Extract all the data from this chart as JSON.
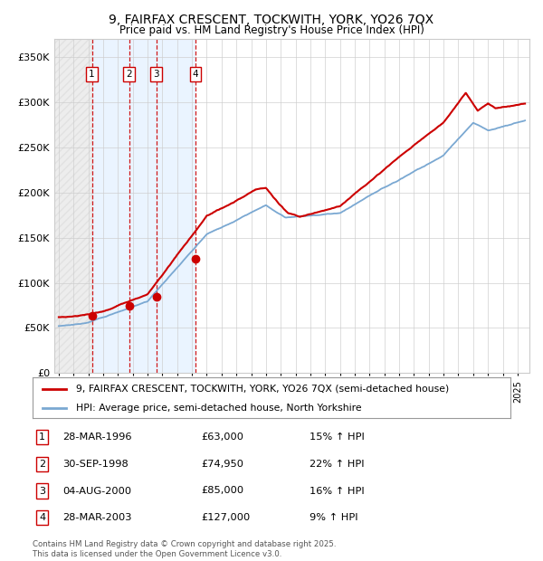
{
  "title1": "9, FAIRFAX CRESCENT, TOCKWITH, YORK, YO26 7QX",
  "title2": "Price paid vs. HM Land Registry's House Price Index (HPI)",
  "title_fontsize": 10,
  "subtitle_fontsize": 8.5,
  "ylabel_ticks": [
    "£0",
    "£50K",
    "£100K",
    "£150K",
    "£200K",
    "£250K",
    "£300K",
    "£350K"
  ],
  "ytick_values": [
    0,
    50000,
    100000,
    150000,
    200000,
    250000,
    300000,
    350000
  ],
  "ylim": [
    0,
    370000
  ],
  "xlim_start": 1993.7,
  "xlim_end": 2025.8,
  "purchases": [
    {
      "num": 1,
      "date_dec": 1996.24,
      "price": 63000,
      "date_str": "28-MAR-1996",
      "pct": "15%"
    },
    {
      "num": 2,
      "date_dec": 1998.75,
      "price": 74950,
      "date_str": "30-SEP-1998",
      "pct": "22%"
    },
    {
      "num": 3,
      "date_dec": 2000.59,
      "price": 85000,
      "date_str": "04-AUG-2000",
      "pct": "16%"
    },
    {
      "num": 4,
      "date_dec": 2003.24,
      "price": 127000,
      "date_str": "28-MAR-2003",
      "pct": "9%"
    }
  ],
  "legend_line1": "9, FAIRFAX CRESCENT, TOCKWITH, YORK, YO26 7QX (semi-detached house)",
  "legend_line2": "HPI: Average price, semi-detached house, North Yorkshire",
  "footer": "Contains HM Land Registry data © Crown copyright and database right 2025.\nThis data is licensed under the Open Government Licence v3.0.",
  "line_color_red": "#cc0000",
  "line_color_blue": "#7aa8d2",
  "vline_color": "#cc0000",
  "shade_color": "#ddeeff",
  "background_color": "#ffffff",
  "grid_color": "#cccccc"
}
